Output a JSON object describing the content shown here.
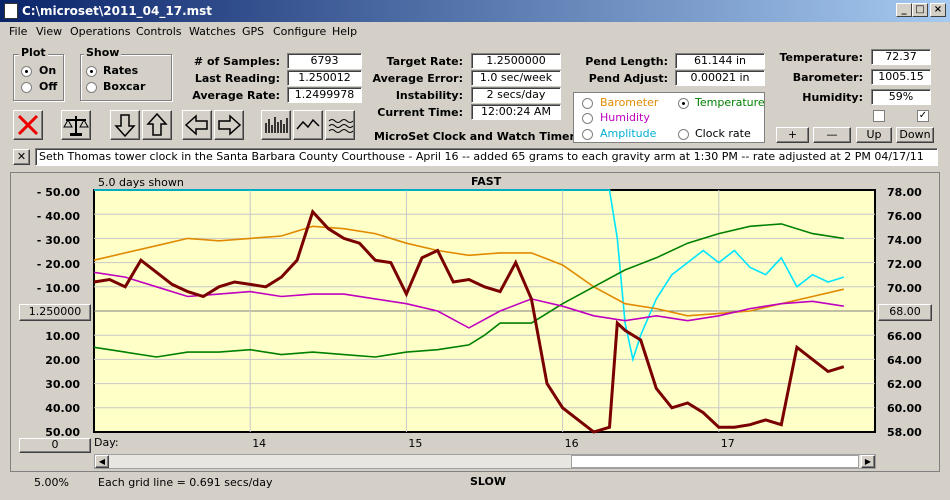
{
  "window": {
    "title": "C:\\microset\\2011_04_17.mst"
  },
  "menu": [
    "File",
    "View",
    "Operations",
    "Controls",
    "Watches",
    "GPS",
    "Configure",
    "Help"
  ],
  "plot": {
    "title": "Plot",
    "options": [
      "On",
      "Off"
    ],
    "selected": "On"
  },
  "show": {
    "title": "Show",
    "options": [
      "Rates",
      "Boxcar"
    ],
    "selected": "Rates"
  },
  "stats": {
    "samples_label": "# of Samples:",
    "samples": "6793",
    "last_label": "Last Reading:",
    "last": "1.250012",
    "avg_label": "Average Rate:",
    "avg": "1.2499978"
  },
  "target": {
    "target_label": "Target Rate:",
    "target": "1.2500000",
    "err_label": "Average Error:",
    "err": "1.0 sec/week",
    "inst_label": "Instability:",
    "inst": "2 secs/day",
    "time_label": "Current Time:",
    "time": "12:00:24 AM"
  },
  "pend": {
    "length_label": "Pend Length:",
    "length": "61.144 in",
    "adjust_label": "Pend Adjust:",
    "adjust": "0.00021 in"
  },
  "env": {
    "temp_label": "Temperature:",
    "temp": "72.37",
    "baro_label": "Barometer:",
    "baro": "1005.15",
    "hum_label": "Humidity:",
    "hum": "59%"
  },
  "series_select": {
    "options": [
      {
        "label": "Barometer",
        "color": "#e08a00",
        "selected": false
      },
      {
        "label": "Temperature",
        "color": "#008000",
        "selected": true
      },
      {
        "label": "Humidity",
        "color": "#c000c0",
        "selected": false
      },
      {
        "label": "Amplitude",
        "color": "#00b0d0",
        "selected": false
      },
      {
        "label": "Clock rate",
        "color": "#000000",
        "selected": false
      }
    ]
  },
  "app_name": "MicroSet Clock and Watch Timer",
  "axis_buttons": {
    "plus": "+",
    "minus": "—",
    "up": "Up",
    "down": "Down"
  },
  "checkboxes": {
    "c1": "",
    "c2": "✓"
  },
  "note": "Seth Thomas tower clock in the Santa Barbara County Courthouse - April 16 -- added 65 grams to each gravity arm at 1:30 PM -- rate adjusted at 2 PM 04/17/11",
  "note_close": "✕",
  "chart_labels": {
    "days_shown": "5.0 days shown",
    "fast": "FAST",
    "slow": "SLOW",
    "day_label": "Day:",
    "left_center": "1.250000",
    "right_center": "68.00",
    "left_zero": "0",
    "percent": "5.00%",
    "grid_note": "Each grid line = 0.691 secs/day"
  },
  "chart_data": {
    "type": "line",
    "left_axis_ticks": [
      "-  50.00",
      "-  40.00",
      "-  30.00",
      "-  20.00",
      "-  10.00",
      "10.00",
      "20.00",
      "30.00",
      "40.00",
      "50.00"
    ],
    "right_axis_ticks": [
      "78.00",
      "76.00",
      "74.00",
      "72.00",
      "70.00",
      "66.00",
      "64.00",
      "62.00",
      "60.00",
      "58.00"
    ],
    "x_ticks": [
      "14",
      "15",
      "16",
      "17"
    ],
    "left_ylim": [
      50,
      -50
    ],
    "right_ylim": [
      58,
      78
    ],
    "xlim": [
      13.0,
      18.0
    ],
    "series": [
      {
        "color": "#00e5ff",
        "x": [
          13.0,
          16.3,
          16.35,
          16.4,
          16.45,
          16.5,
          16.6,
          16.7,
          16.8,
          16.9,
          17.0,
          17.1,
          17.2,
          17.3,
          17.4,
          17.5,
          17.6,
          17.7,
          17.8
        ],
        "y": [
          50,
          50,
          30,
          -5,
          -20,
          -10,
          5,
          15,
          20,
          25,
          20,
          25,
          18,
          15,
          22,
          10,
          15,
          12,
          14
        ]
      },
      {
        "color": "#e08a00",
        "x": [
          13.0,
          13.2,
          13.4,
          13.6,
          13.8,
          14.0,
          14.2,
          14.4,
          14.6,
          14.8,
          15.0,
          15.2,
          15.4,
          15.6,
          15.8,
          16.0,
          16.2,
          16.4,
          16.6,
          16.8,
          17.0,
          17.2,
          17.4,
          17.6,
          17.8
        ],
        "y": [
          21,
          24,
          27,
          30,
          29,
          30,
          31,
          35,
          34,
          32,
          28,
          25,
          23,
          24,
          24,
          19,
          10,
          3,
          1,
          -2,
          -1,
          0,
          3,
          6,
          9
        ]
      },
      {
        "color": "#008000",
        "x": [
          13.0,
          13.2,
          13.4,
          13.6,
          13.8,
          14.0,
          14.2,
          14.4,
          14.6,
          14.8,
          15.0,
          15.2,
          15.4,
          15.5,
          15.6,
          15.8,
          16.0,
          16.2,
          16.4,
          16.6,
          16.8,
          17.0,
          17.2,
          17.4,
          17.6,
          17.8
        ],
        "y": [
          -15,
          -17,
          -19,
          -17,
          -17,
          -16,
          -18,
          -17,
          -18,
          -19,
          -17,
          -16,
          -14,
          -10,
          -5,
          -5,
          3,
          10,
          17,
          22,
          28,
          32,
          35,
          36,
          32,
          30
        ]
      },
      {
        "color": "#c000c0",
        "x": [
          13.0,
          13.2,
          13.4,
          13.6,
          13.8,
          14.0,
          14.2,
          14.4,
          14.6,
          14.8,
          15.0,
          15.2,
          15.4,
          15.6,
          15.8,
          16.0,
          16.2,
          16.4,
          16.6,
          16.8,
          17.0,
          17.2,
          17.4,
          17.6,
          17.8
        ],
        "y": [
          16,
          14,
          10,
          6,
          7,
          8,
          6,
          7,
          7,
          5,
          3,
          0,
          -7,
          0,
          5,
          2,
          -2,
          -4,
          -2,
          -4,
          -2,
          1,
          3,
          4,
          2
        ]
      },
      {
        "color": "#7a0000",
        "x": [
          13.0,
          13.1,
          13.2,
          13.3,
          13.4,
          13.5,
          13.6,
          13.7,
          13.8,
          13.9,
          14.0,
          14.1,
          14.2,
          14.3,
          14.4,
          14.5,
          14.6,
          14.7,
          14.8,
          14.9,
          15.0,
          15.1,
          15.2,
          15.3,
          15.4,
          15.5,
          15.6,
          15.7,
          15.8,
          15.9,
          16.0,
          16.1,
          16.2,
          16.3,
          16.35,
          16.4,
          16.5,
          16.6,
          16.7,
          16.8,
          16.9,
          17.0,
          17.1,
          17.2,
          17.3,
          17.4,
          17.5,
          17.6,
          17.7,
          17.8
        ],
        "y": [
          12,
          13,
          10,
          21,
          16,
          11,
          8,
          6,
          10,
          12,
          11,
          10,
          14,
          21,
          41,
          34,
          30,
          28,
          21,
          20,
          7,
          22,
          25,
          12,
          13,
          10,
          8,
          20,
          5,
          -30,
          -40,
          -45,
          -50,
          -48,
          -5,
          -8,
          -12,
          -32,
          -40,
          -38,
          -42,
          -48,
          -48,
          -47,
          -45,
          -47,
          -15,
          -20,
          -25,
          -23
        ]
      }
    ]
  }
}
